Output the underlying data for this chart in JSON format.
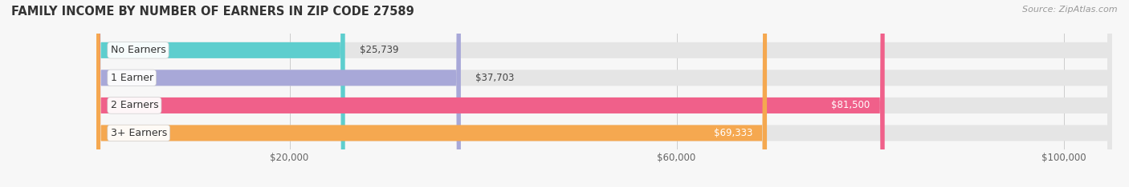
{
  "title": "FAMILY INCOME BY NUMBER OF EARNERS IN ZIP CODE 27589",
  "source": "Source: ZipAtlas.com",
  "categories": [
    "No Earners",
    "1 Earner",
    "2 Earners",
    "3+ Earners"
  ],
  "values": [
    25739,
    37703,
    81500,
    69333
  ],
  "bar_colors": [
    "#5ECECE",
    "#A8A8D8",
    "#F0608A",
    "#F5A850"
  ],
  "label_colors": [
    "#333333",
    "#333333",
    "#ffffff",
    "#ffffff"
  ],
  "value_inside": [
    false,
    false,
    true,
    true
  ],
  "xlim": [
    0,
    105000
  ],
  "xticks": [
    20000,
    60000,
    100000
  ],
  "xtick_labels": [
    "$20,000",
    "$60,000",
    "$100,000"
  ],
  "bg_color": "#f7f7f7",
  "bar_bg_color": "#e5e5e5",
  "bar_height": 0.58,
  "title_fontsize": 10.5,
  "source_fontsize": 8,
  "label_fontsize": 9,
  "value_fontsize": 8.5,
  "tick_fontsize": 8.5
}
